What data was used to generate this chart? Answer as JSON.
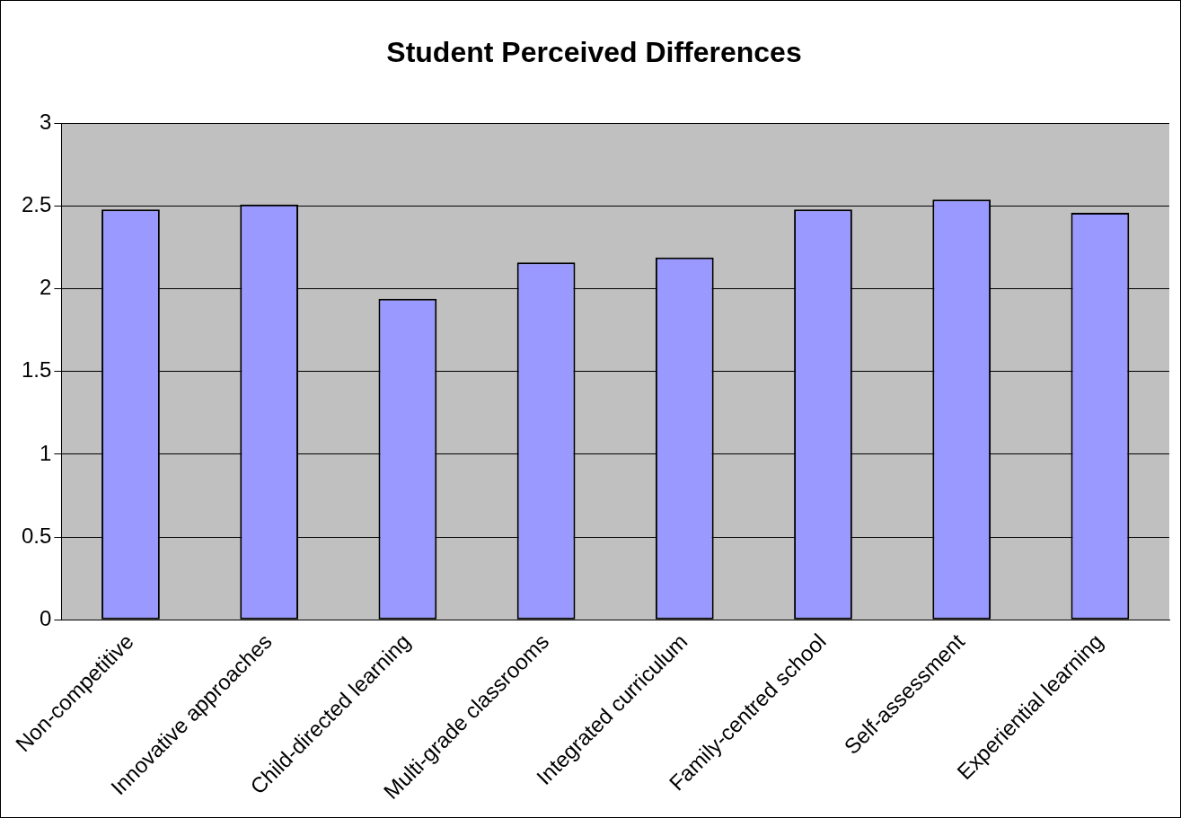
{
  "chart_data": {
    "type": "bar",
    "title": "Student Perceived Differences",
    "categories": [
      "Non-competitive",
      "Innovative approaches",
      "Child-directed learning",
      "Multi-grade classrooms",
      "Integrated curriculum",
      "Family-centred school",
      "Self-assessment",
      "Experiential learning"
    ],
    "values": [
      2.48,
      2.51,
      1.94,
      2.16,
      2.19,
      2.48,
      2.54,
      2.46
    ],
    "color": "#9999ff",
    "ylim": [
      0,
      3
    ],
    "yticks": [
      0,
      0.5,
      1,
      1.5,
      2,
      2.5,
      3
    ],
    "grid": "y",
    "legend": false
  }
}
